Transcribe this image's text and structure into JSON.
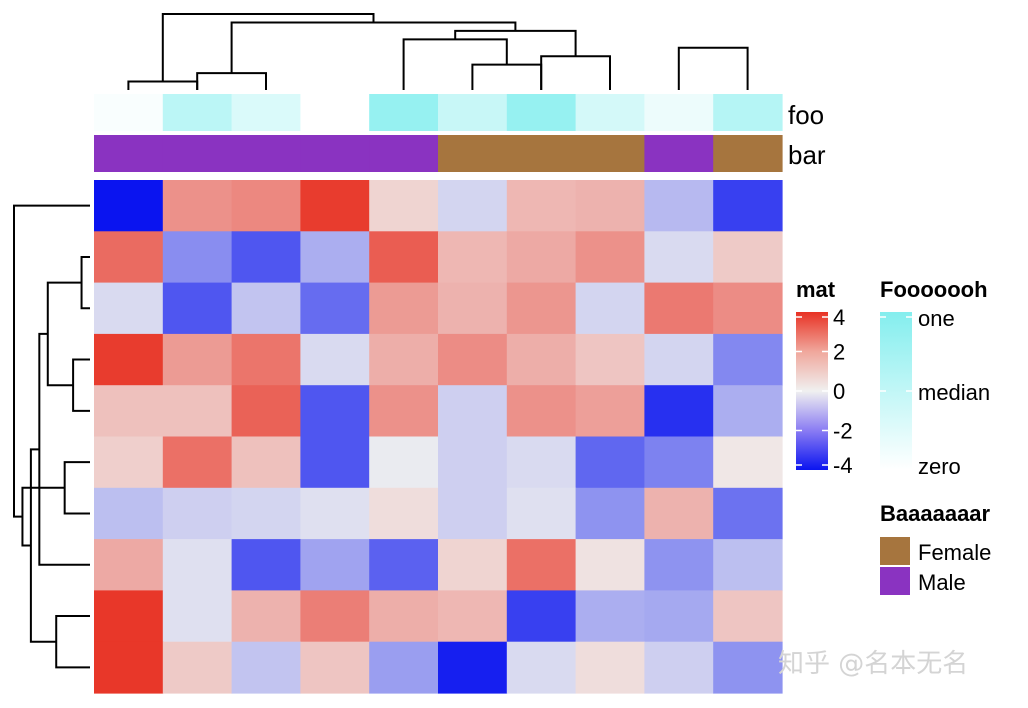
{
  "chart_data": {
    "type": "heatmap",
    "matrix_legend_title": "mat",
    "color_scale": {
      "stops": [
        {
          "value": -4,
          "color": "#0a14f0"
        },
        {
          "value": 0,
          "color": "#f0f0f0"
        },
        {
          "value": 4,
          "color": "#e83224"
        }
      ],
      "ticks": [
        "4",
        "2",
        "0",
        "-2",
        "-4"
      ],
      "tick_values": [
        4,
        2,
        0,
        -2,
        -4
      ]
    },
    "values": [
      [
        -4.0,
        2.0,
        2.2,
        3.8,
        0.6,
        -0.5,
        1.2,
        1.3,
        -1.0,
        -3.2
      ],
      [
        2.8,
        -1.8,
        -2.8,
        -1.2,
        3.1,
        1.2,
        1.5,
        2.0,
        -0.4,
        0.8
      ],
      [
        -0.4,
        -2.8,
        -0.8,
        -2.4,
        1.8,
        1.3,
        1.9,
        -0.5,
        2.5,
        2.1
      ],
      [
        3.8,
        1.8,
        2.6,
        -0.4,
        1.4,
        2.1,
        1.4,
        0.9,
        -0.5,
        -1.9
      ],
      [
        1.0,
        1.0,
        3.0,
        -2.8,
        2.0,
        -0.6,
        2.0,
        1.7,
        -3.5,
        -1.2
      ],
      [
        0.7,
        2.7,
        1.0,
        -2.8,
        -0.1,
        -0.6,
        -0.4,
        -2.5,
        -2.0,
        0.2
      ],
      [
        -0.9,
        -0.6,
        -0.5,
        -0.3,
        0.4,
        -0.6,
        -0.3,
        -1.7,
        1.3,
        -2.3
      ],
      [
        1.5,
        -0.3,
        -2.8,
        -1.4,
        -2.6,
        0.6,
        2.7,
        0.3,
        -1.7,
        -0.9
      ],
      [
        3.9,
        -0.3,
        1.3,
        2.4,
        1.4,
        1.2,
        -3.2,
        -1.2,
        -1.3,
        0.9
      ],
      [
        3.9,
        0.8,
        -0.8,
        0.9,
        -1.5,
        -3.8,
        -0.4,
        0.4,
        -0.6,
        -1.7
      ]
    ],
    "column_annotations": {
      "foo": {
        "label": "foo",
        "values": [
          0.05,
          0.55,
          0.3,
          0.0,
          0.85,
          0.45,
          0.85,
          0.35,
          0.15,
          0.6
        ],
        "legend_title": "Fooooooh",
        "legend_labels": [
          "one",
          "median",
          "zero"
        ],
        "color_high": "#84eeee",
        "color_low": "#ffffff"
      },
      "bar": {
        "label": "bar",
        "values": [
          "Male",
          "Male",
          "Male",
          "Male",
          "Male",
          "Female",
          "Female",
          "Female",
          "Male",
          "Female"
        ],
        "legend_title": "Baaaaaaar",
        "levels": [
          {
            "name": "Female",
            "color": "#a6753e"
          },
          {
            "name": "Male",
            "color": "#8a33c1"
          }
        ]
      }
    },
    "column_dendrogram": [
      [
        0,
        1
      ],
      [
        1,
        2
      ],
      [
        5,
        6
      ],
      [
        6,
        7
      ],
      [
        8,
        9
      ],
      [
        4,
        -3
      ],
      [
        -6,
        -4
      ],
      [
        -2,
        -7
      ],
      [
        -1,
        -8
      ]
    ],
    "row_dendrogram": [
      [
        1,
        2
      ],
      [
        3,
        4
      ],
      [
        5,
        6
      ],
      [
        8,
        9
      ],
      [
        -1,
        -2
      ],
      [
        -5,
        7
      ],
      [
        -6,
        -4
      ],
      [
        -7,
        -3
      ],
      [
        0,
        -8
      ]
    ]
  },
  "watermark": "知乎 @名本无名"
}
